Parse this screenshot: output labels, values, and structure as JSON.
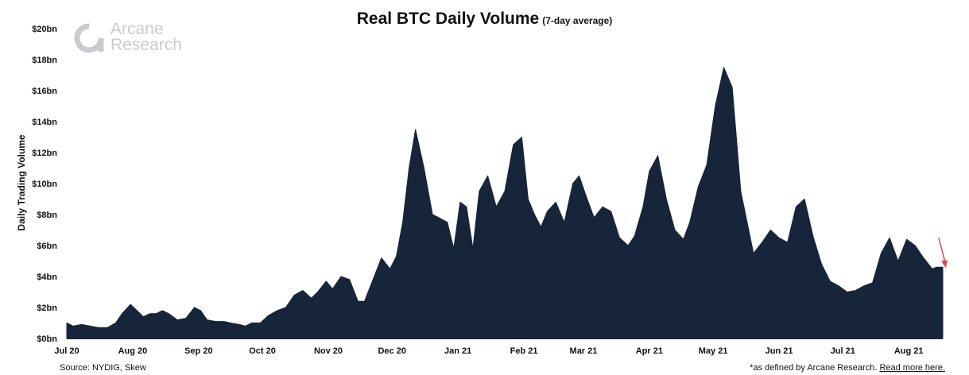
{
  "header": {
    "title": "Real BTC Daily Volume",
    "subtitle": "(7-day average)"
  },
  "logo": {
    "line1": "Arcane",
    "line2": "Research"
  },
  "footer": {
    "source": "Source: NYDIG, Skew",
    "note": "*as defined by Arcane Research.",
    "link_text": "Read more here."
  },
  "colors": {
    "area": "#17253a",
    "arrow": "#e0474c",
    "logo": "#c9cbce"
  },
  "chart_data": {
    "type": "area",
    "title": "Real BTC Daily Volume",
    "subtitle": "(7-day average)",
    "xlabel": "",
    "ylabel": "Daily Trading Volume",
    "y_unit": "$bn",
    "ylim": [
      0,
      20
    ],
    "y_ticks": [
      0,
      2,
      4,
      6,
      8,
      10,
      12,
      14,
      16,
      18,
      20
    ],
    "y_tick_labels": [
      "$0bn",
      "$2bn",
      "$4bn",
      "$6bn",
      "$8bn",
      "$10bn",
      "$12bn",
      "$14bn",
      "$16bn",
      "$18bn",
      "$20bn"
    ],
    "xlim": [
      "2020-07-01",
      "2021-08-17"
    ],
    "x_ticks": [
      "2020-07-01",
      "2020-08-01",
      "2020-09-01",
      "2020-10-01",
      "2020-11-01",
      "2020-12-01",
      "2021-01-01",
      "2021-02-01",
      "2021-03-01",
      "2021-04-01",
      "2021-05-01",
      "2021-06-01",
      "2021-07-01",
      "2021-08-01"
    ],
    "x_tick_labels": [
      "Jul 20",
      "Aug 20",
      "Sep 20",
      "Oct 20",
      "Nov 20",
      "Dec 20",
      "Jan 21",
      "Feb 21",
      "Mar 21",
      "Apr 21",
      "May 21",
      "Jun 21",
      "Jul 21",
      "Aug 21"
    ],
    "grid": false,
    "legend": "none",
    "annotation": "red downward arrow at end of series",
    "series": [
      {
        "x": [
          "2020-07-01",
          "2020-07-04",
          "2020-07-08",
          "2020-07-12",
          "2020-07-16",
          "2020-07-20",
          "2020-07-24",
          "2020-07-27",
          "2020-07-31",
          "2020-08-03",
          "2020-08-06",
          "2020-08-09",
          "2020-08-12",
          "2020-08-15",
          "2020-08-18",
          "2020-08-22",
          "2020-08-26",
          "2020-08-30",
          "2020-09-02",
          "2020-09-05",
          "2020-09-09",
          "2020-09-13",
          "2020-09-16",
          "2020-09-20",
          "2020-09-23",
          "2020-09-26",
          "2020-09-30",
          "2020-10-04",
          "2020-10-08",
          "2020-10-12",
          "2020-10-16",
          "2020-10-20",
          "2020-10-24",
          "2020-10-27",
          "2020-10-31",
          "2020-11-03",
          "2020-11-07",
          "2020-11-11",
          "2020-11-15",
          "2020-11-18",
          "2020-11-22",
          "2020-11-26",
          "2020-11-30",
          "2020-12-03",
          "2020-12-06",
          "2020-12-09",
          "2020-12-12",
          "2020-12-16",
          "2020-12-20",
          "2020-12-23",
          "2020-12-27",
          "2020-12-30",
          "2021-01-02",
          "2021-01-05",
          "2021-01-08",
          "2021-01-11",
          "2021-01-15",
          "2021-01-19",
          "2021-01-23",
          "2021-01-27",
          "2021-01-31",
          "2021-02-03",
          "2021-02-06",
          "2021-02-09",
          "2021-02-12",
          "2021-02-16",
          "2021-02-20",
          "2021-02-24",
          "2021-02-27",
          "2021-03-02",
          "2021-03-06",
          "2021-03-10",
          "2021-03-14",
          "2021-03-18",
          "2021-03-22",
          "2021-03-25",
          "2021-03-29",
          "2021-04-01",
          "2021-04-05",
          "2021-04-09",
          "2021-04-13",
          "2021-04-17",
          "2021-04-20",
          "2021-04-24",
          "2021-04-28",
          "2021-05-02",
          "2021-05-06",
          "2021-05-10",
          "2021-05-14",
          "2021-05-17",
          "2021-05-20",
          "2021-05-24",
          "2021-05-28",
          "2021-06-01",
          "2021-06-05",
          "2021-06-09",
          "2021-06-13",
          "2021-06-17",
          "2021-06-21",
          "2021-06-25",
          "2021-06-29",
          "2021-07-03",
          "2021-07-07",
          "2021-07-11",
          "2021-07-15",
          "2021-07-19",
          "2021-07-23",
          "2021-07-27",
          "2021-07-31",
          "2021-08-04",
          "2021-08-08",
          "2021-08-12",
          "2021-08-14",
          "2021-08-17"
        ],
        "values": [
          1.0,
          0.8,
          0.9,
          0.8,
          0.7,
          0.7,
          1.0,
          1.6,
          2.2,
          1.8,
          1.4,
          1.6,
          1.6,
          1.8,
          1.6,
          1.2,
          1.3,
          2.0,
          1.8,
          1.2,
          1.1,
          1.1,
          1.0,
          0.9,
          0.8,
          1.0,
          1.0,
          1.5,
          1.8,
          2.0,
          2.8,
          3.1,
          2.6,
          3.0,
          3.7,
          3.2,
          4.0,
          3.8,
          2.4,
          2.4,
          3.8,
          5.2,
          4.5,
          5.3,
          7.5,
          11.0,
          13.5,
          11.0,
          8.0,
          7.8,
          7.5,
          5.8,
          8.8,
          8.5,
          5.8,
          9.5,
          10.5,
          8.5,
          9.5,
          12.5,
          13.0,
          9.0,
          8.0,
          7.2,
          8.2,
          8.8,
          7.5,
          10.0,
          10.5,
          9.3,
          7.8,
          8.5,
          8.2,
          6.5,
          6.0,
          6.6,
          8.5,
          10.8,
          11.8,
          9.0,
          7.0,
          6.4,
          7.5,
          9.8,
          11.2,
          15.0,
          17.5,
          16.2,
          9.5,
          7.5,
          5.5,
          6.2,
          7.0,
          6.5,
          6.2,
          8.5,
          9.0,
          6.6,
          4.8,
          3.7,
          3.4,
          3.0,
          3.1,
          3.4,
          3.6,
          5.5,
          6.5,
          5.0,
          6.4,
          6.0,
          5.2,
          4.5,
          4.6,
          4.6
        ]
      }
    ]
  }
}
